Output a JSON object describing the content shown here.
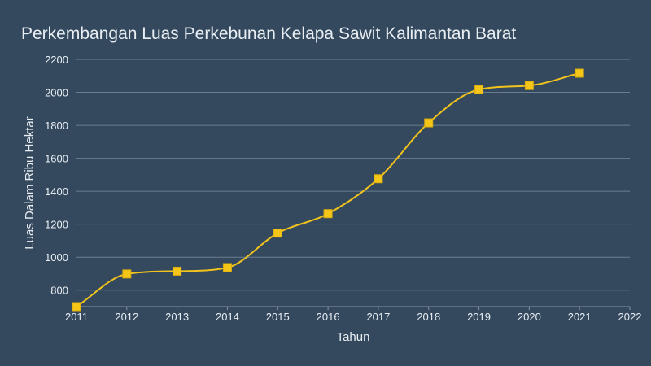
{
  "chart_data": {
    "type": "line",
    "title": "Perkembangan Luas Perkebunan Kelapa Sawit Kalimantan Barat",
    "xlabel": "Tahun",
    "ylabel": "Luas Dalam Ribu Hektar",
    "x": [
      2011,
      2012,
      2013,
      2014,
      2015,
      2016,
      2017,
      2018,
      2019,
      2020,
      2021
    ],
    "series": [
      {
        "values": [
          700,
          898,
          915,
          937,
          1146,
          1264,
          1476,
          1815,
          2017,
          2041,
          2116
        ]
      }
    ],
    "xlim": [
      2011,
      2022
    ],
    "ylim": [
      700,
      2200
    ],
    "x_ticks": [
      "2011",
      "2012",
      "2013",
      "2014",
      "2015",
      "2016",
      "2017",
      "2018",
      "2019",
      "2020",
      "2021",
      "2022"
    ],
    "y_ticks": [
      "800",
      "1000",
      "1200",
      "1400",
      "1600",
      "1800",
      "2000",
      "2200"
    ],
    "grid": true,
    "line_color": "#f2c31d",
    "background": "#34495e"
  }
}
